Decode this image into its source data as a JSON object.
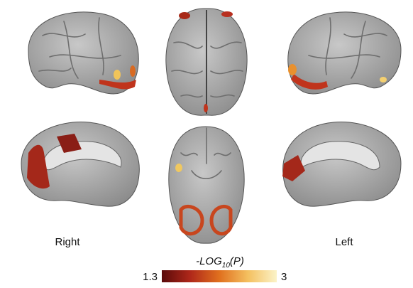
{
  "views": {
    "right_label": "Right",
    "left_label": "Left"
  },
  "colorbar": {
    "label_parts": [
      "-LOG",
      "10",
      "(P)"
    ],
    "min_label": "1.3",
    "max_label": "3",
    "colors": [
      "#5a0a0a",
      "#b0281a",
      "#e0701e",
      "#f4c060",
      "#fbf3c8"
    ]
  }
}
